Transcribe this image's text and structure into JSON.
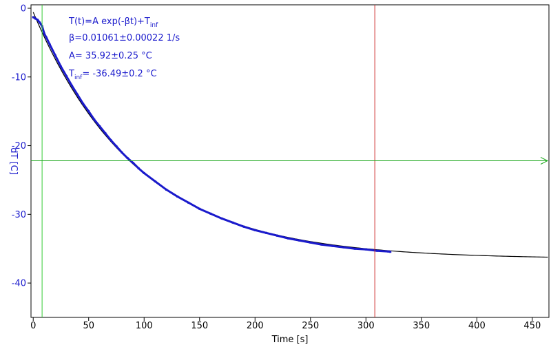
{
  "chart_data": {
    "type": "scatter",
    "xlabel": "Time [s]",
    "ylabel": "dT [C]",
    "xlim": [
      -2,
      465
    ],
    "ylim": [
      -45,
      0.5
    ],
    "x_ticks": [
      0,
      50,
      100,
      150,
      200,
      250,
      300,
      350,
      400,
      450
    ],
    "y_ticks": [
      0,
      -10,
      -20,
      -30,
      -40
    ],
    "grid": false,
    "annotations": {
      "equation": "T(t)=A exp(-βt)+T",
      "equation_sub": "inf",
      "beta": "β=0.01061±0.00022 1/s",
      "amplitude": "A= 35.92±0.25 °C",
      "tinf_prefix": "T",
      "tinf_sub": "inf",
      "tinf_value": "= -36.49±0.2 °C"
    },
    "fit": {
      "A": 35.92,
      "beta": 0.01061,
      "T_inf": -36.49,
      "x_range": [
        0,
        465
      ]
    },
    "series": [
      {
        "points": [
          [
            0,
            -1.3
          ],
          [
            2,
            -1.5
          ],
          [
            4,
            -1.7
          ],
          [
            6,
            -2.1
          ],
          [
            8,
            -2.6
          ],
          [
            10,
            -3.7
          ],
          [
            12,
            -4.3
          ],
          [
            15,
            -5.3
          ],
          [
            20,
            -6.9
          ],
          [
            25,
            -8.5
          ],
          [
            30,
            -9.9
          ],
          [
            35,
            -11.3
          ],
          [
            40,
            -12.6
          ],
          [
            45,
            -13.9
          ],
          [
            50,
            -15.0
          ],
          [
            55,
            -16.2
          ],
          [
            60,
            -17.2
          ],
          [
            65,
            -18.2
          ],
          [
            70,
            -19.2
          ],
          [
            75,
            -20.1
          ],
          [
            80,
            -21.0
          ],
          [
            85,
            -21.8
          ],
          [
            90,
            -22.5
          ],
          [
            95,
            -23.3
          ],
          [
            100,
            -24.0
          ],
          [
            110,
            -25.2
          ],
          [
            120,
            -26.4
          ],
          [
            130,
            -27.4
          ],
          [
            140,
            -28.3
          ],
          [
            150,
            -29.2
          ],
          [
            160,
            -29.9
          ],
          [
            170,
            -30.6
          ],
          [
            180,
            -31.2
          ],
          [
            190,
            -31.8
          ],
          [
            200,
            -32.3
          ],
          [
            210,
            -32.7
          ],
          [
            220,
            -33.1
          ],
          [
            230,
            -33.5
          ],
          [
            240,
            -33.8
          ],
          [
            250,
            -34.1
          ],
          [
            260,
            -34.4
          ],
          [
            270,
            -34.6
          ],
          [
            280,
            -34.8
          ],
          [
            290,
            -35.0
          ],
          [
            300,
            -35.1
          ],
          [
            310,
            -35.3
          ],
          [
            320,
            -35.4
          ],
          [
            322,
            -35.45
          ]
        ]
      }
    ],
    "markers": {
      "vertical_green_x": 8,
      "vertical_red_x": 308,
      "horizontal_green_y": -22.2
    },
    "colors": {
      "data": "#1a1acc",
      "fit": "#000000",
      "axis_text": "#1a1acc",
      "green": "#22aa22",
      "green_v": "#33cc33",
      "red": "#cc2222"
    }
  }
}
